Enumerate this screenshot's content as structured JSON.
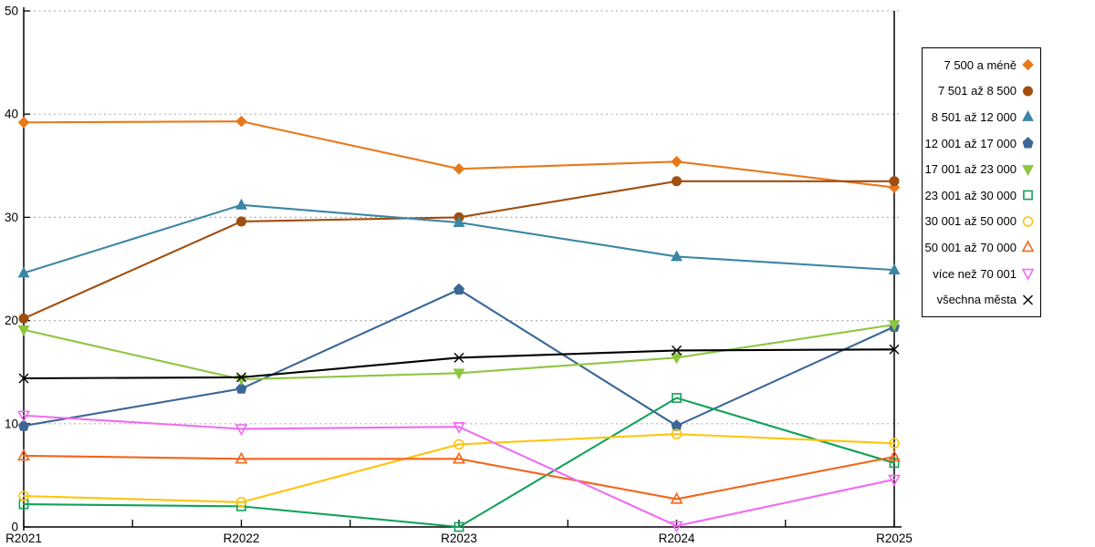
{
  "page": {
    "background": "#ffffff"
  },
  "chart_data": {
    "type": "line",
    "title": "",
    "xlabel": "",
    "ylabel": "",
    "x_categories": [
      "R2021",
      "R2022",
      "R2023",
      "R2024",
      "R2025"
    ],
    "y_ticks": [
      0,
      10,
      20,
      30,
      40,
      50
    ],
    "ylim": [
      0,
      50
    ],
    "grid": "horizontal dashed gray lines at every 10 units",
    "legend_position": "right outside, boxed, markers right of labels",
    "gridline_color": "#b0b0b0",
    "axis_color": "#000000",
    "series": [
      {
        "name": "7 500 a méně",
        "color": "#e8791b",
        "marker": "diamond",
        "marker_style": "filled",
        "values": [
          39.2,
          39.3,
          34.7,
          35.4,
          32.9
        ]
      },
      {
        "name": "7 501 až 8 500",
        "color": "#a04e0f",
        "marker": "circle",
        "marker_style": "filled",
        "values": [
          20.2,
          29.6,
          30.0,
          33.5,
          33.5
        ]
      },
      {
        "name": "8 501 až 12 000",
        "color": "#3b87a5",
        "marker": "triangle-up",
        "marker_style": "filled",
        "values": [
          24.6,
          31.2,
          29.5,
          26.2,
          24.9
        ]
      },
      {
        "name": "12 001 až 17 000",
        "color": "#3a6795",
        "marker": "pentagon",
        "marker_style": "filled",
        "values": [
          9.8,
          13.4,
          23.0,
          9.8,
          19.4
        ]
      },
      {
        "name": "17 001 až 23 000",
        "color": "#8dc63f",
        "marker": "triangle-down",
        "marker_style": "filled",
        "values": [
          19.1,
          14.3,
          14.9,
          16.4,
          19.6
        ]
      },
      {
        "name": "23 001 až 30 000",
        "color": "#12a15b",
        "marker": "square",
        "marker_style": "open",
        "values": [
          2.2,
          2.0,
          0.0,
          12.5,
          6.2
        ]
      },
      {
        "name": "30 001 až 50 000",
        "color": "#ffc40c",
        "marker": "circle",
        "marker_style": "open",
        "values": [
          3.0,
          2.4,
          8.0,
          9.0,
          8.1
        ]
      },
      {
        "name": "50 001 až 70 000",
        "color": "#f2651c",
        "marker": "triangle-up",
        "marker_style": "open",
        "values": [
          6.9,
          6.6,
          6.6,
          2.7,
          6.8
        ]
      },
      {
        "name": "více než 70 001",
        "color": "#f06cf0",
        "marker": "triangle-down",
        "marker_style": "open",
        "values": [
          10.8,
          9.5,
          9.7,
          0.1,
          4.6
        ]
      },
      {
        "name": "všechna města",
        "color": "#000000",
        "marker": "x-cross",
        "marker_style": "open",
        "values": [
          14.4,
          14.5,
          16.4,
          17.1,
          17.2
        ]
      }
    ]
  }
}
